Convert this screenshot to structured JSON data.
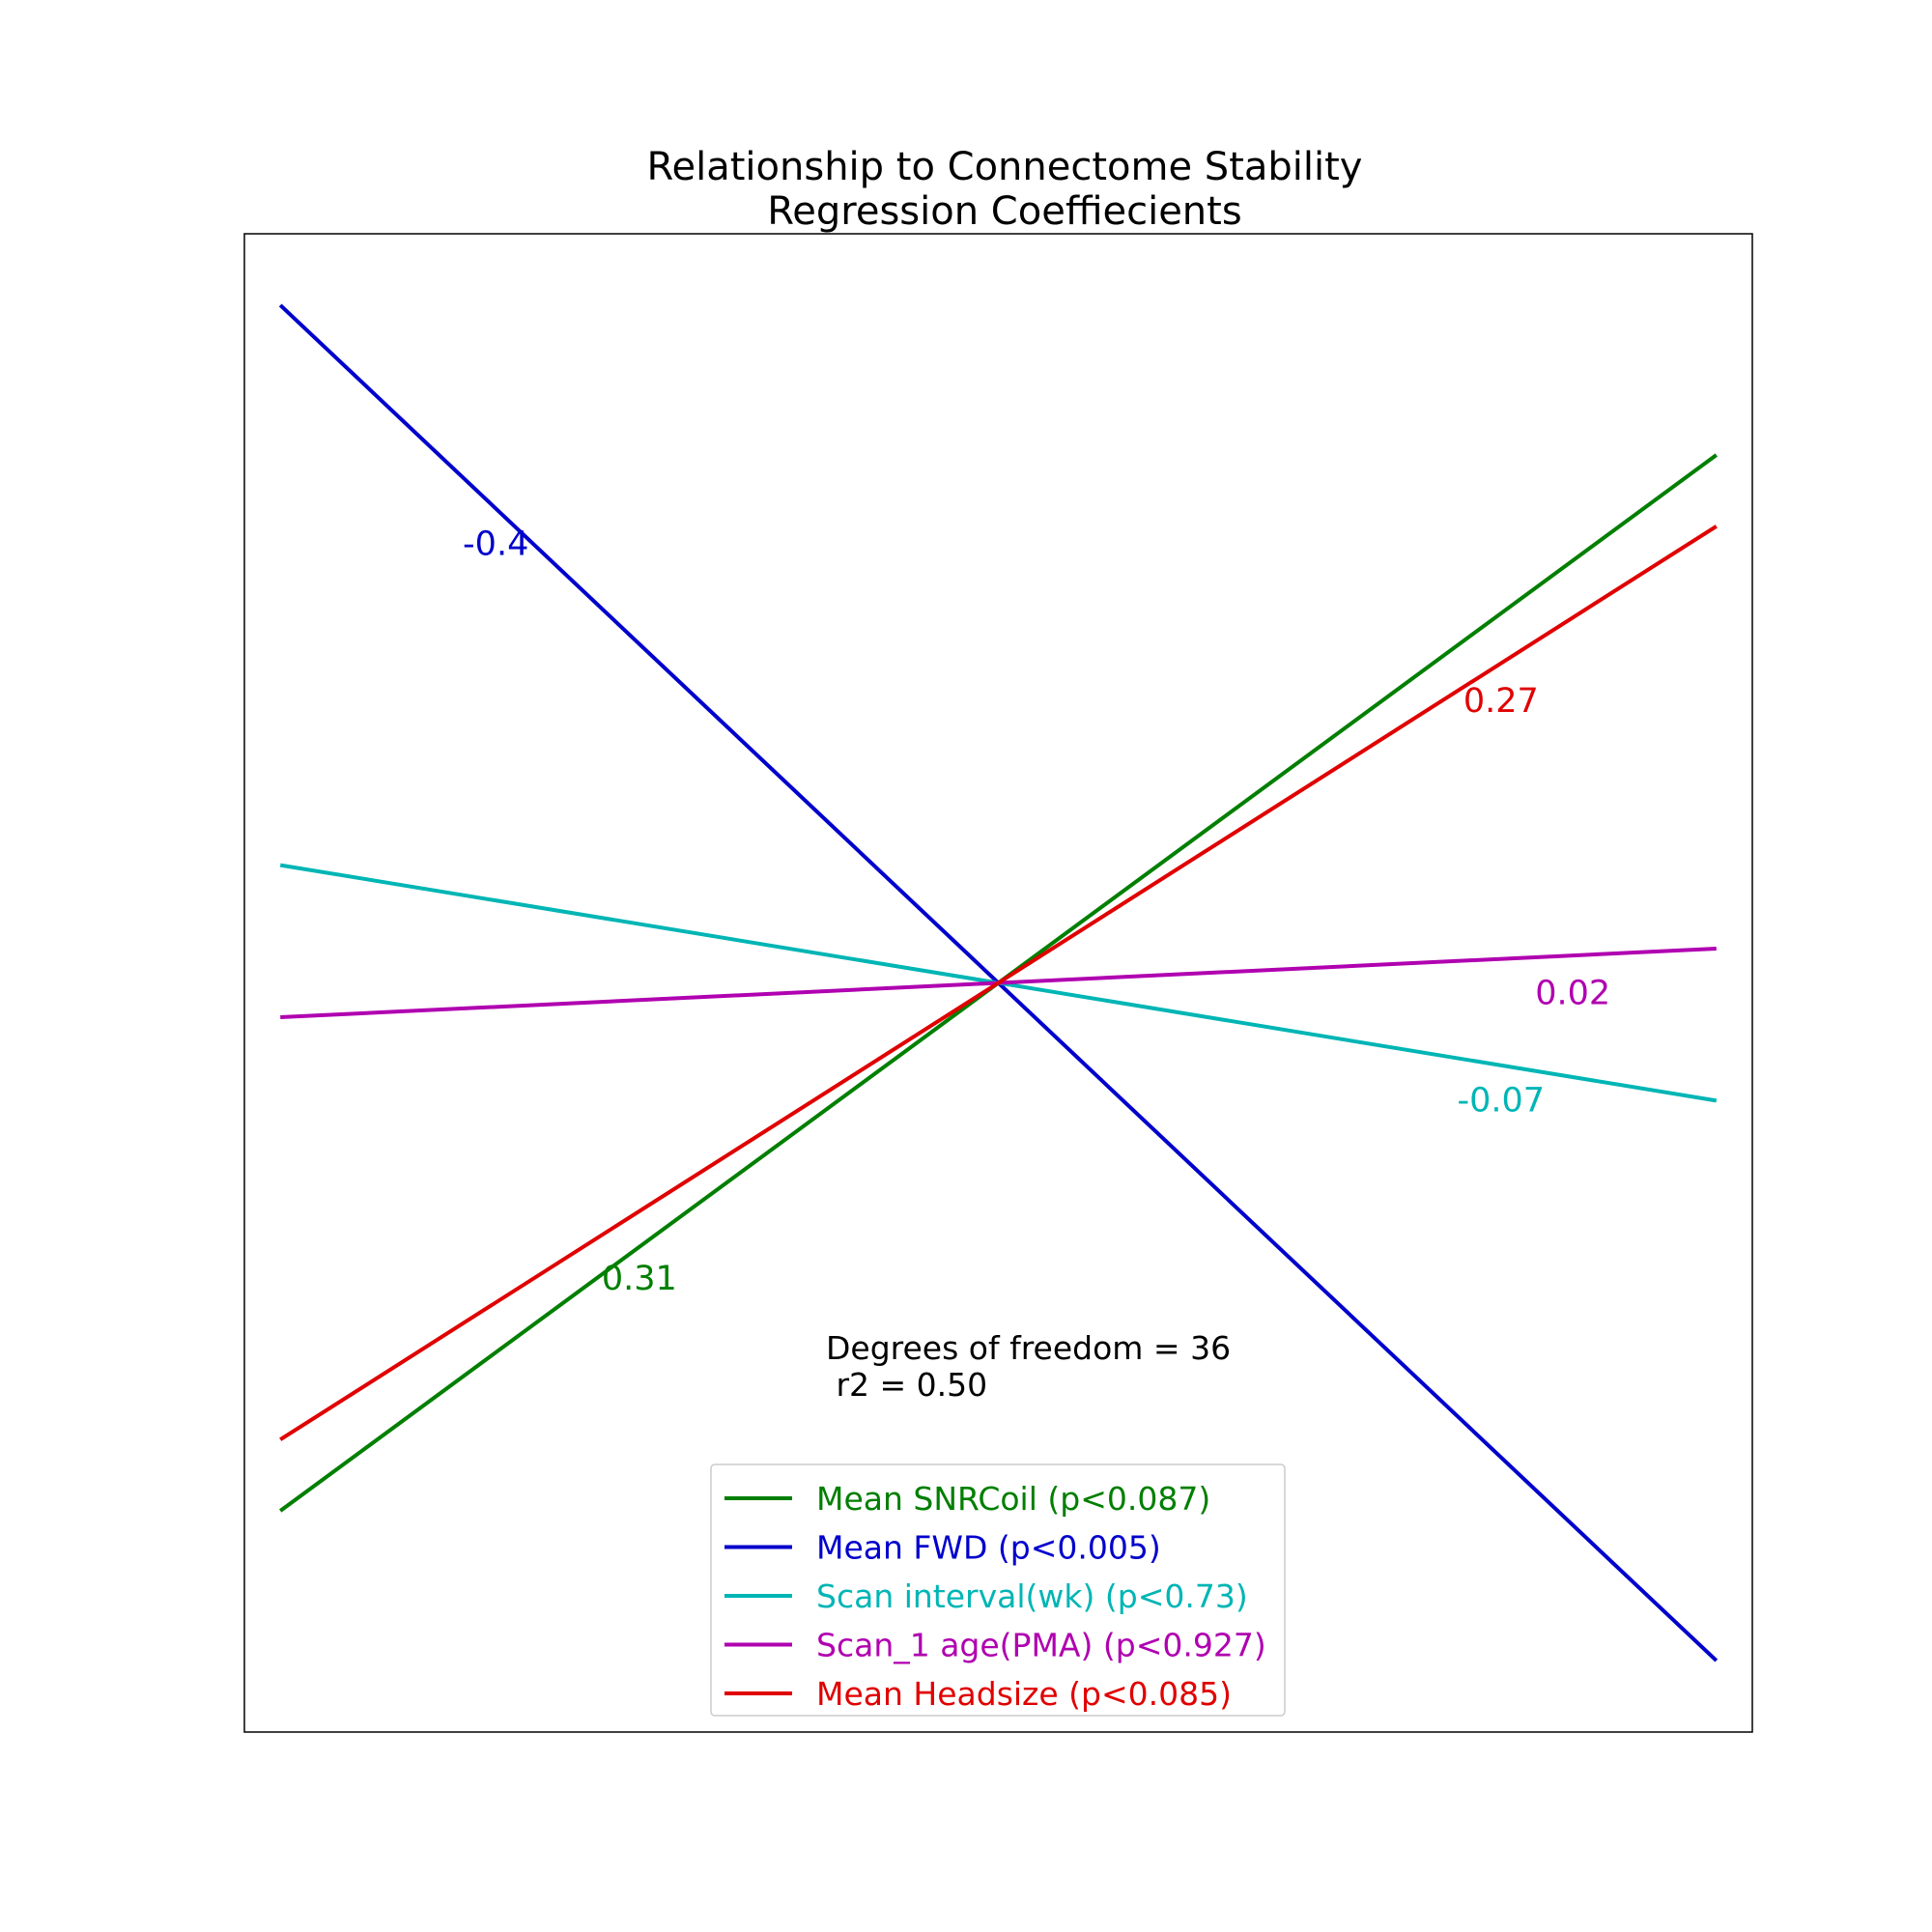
{
  "chart_data": {
    "type": "line",
    "title": [
      "Relationship to Connectome Stability",
      "Regression Coeffiecients"
    ],
    "xlabel": "",
    "ylabel": "",
    "xlim": [
      -1.05,
      1.05
    ],
    "ylim": [
      -1.05,
      1.05
    ],
    "grid": false,
    "axis_ticks": false,
    "legend_placement": "lower center",
    "series": [
      {
        "name": "Mean SNRCoil (p<0.087)",
        "coef": 0.31,
        "label": "0.31",
        "color": "#007f00",
        "x": [
          -1,
          1
        ],
        "y": [
          -0.74,
          0.74
        ],
        "label_at": [
          -0.5,
          -0.43
        ]
      },
      {
        "name": "Mean FWD (p<0.005)",
        "coef": -0.4,
        "label": "-0.4",
        "color": "#0000cc",
        "x": [
          -1,
          1
        ],
        "y": [
          0.95,
          -0.95
        ],
        "label_at": [
          -0.7,
          0.6
        ]
      },
      {
        "name": "Scan interval(wk) (p<0.73)",
        "coef": -0.07,
        "label": "-0.07",
        "color": "#00b5b5",
        "x": [
          -1,
          1
        ],
        "y": [
          0.165,
          -0.165
        ],
        "label_at": [
          0.7,
          -0.18
        ]
      },
      {
        "name": "Scan_1 age(PMA) (p<0.927)",
        "coef": 0.02,
        "label": "0.02",
        "color": "#b000b0",
        "x": [
          -1,
          1
        ],
        "y": [
          -0.048,
          0.048
        ],
        "label_at": [
          0.8,
          -0.03
        ]
      },
      {
        "name": "Mean Headsize (p<0.085)",
        "coef": 0.27,
        "label": "0.27",
        "color": "#e00000",
        "x": [
          -1,
          1
        ],
        "y": [
          -0.64,
          0.64
        ],
        "label_at": [
          0.7,
          0.38
        ]
      }
    ],
    "annotation": [
      "Degrees of freedom = 36",
      " r2 = 0.50"
    ]
  }
}
